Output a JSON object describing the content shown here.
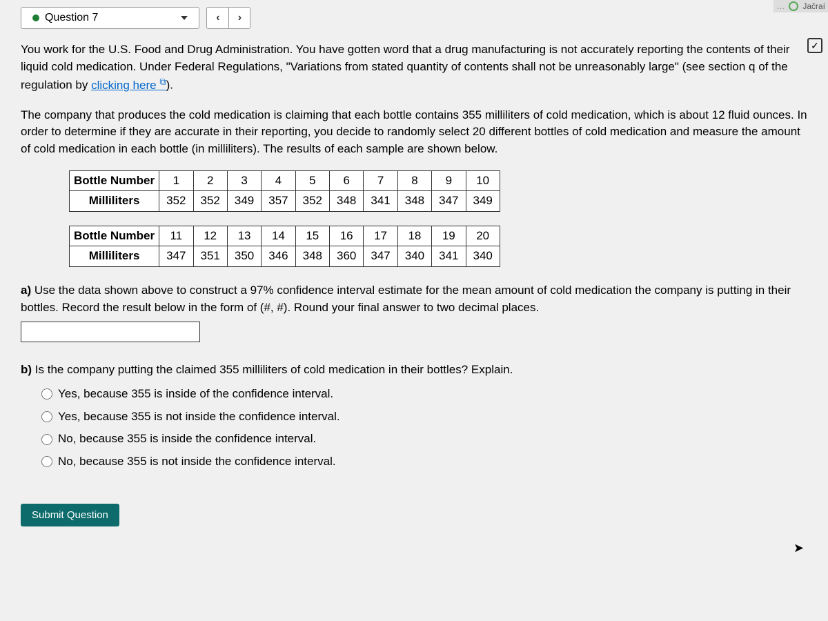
{
  "header": {
    "question_label": "Question 7",
    "prev_symbol": "‹",
    "next_symbol": "›"
  },
  "intro": {
    "p1a": "You work for the U.S. Food and Drug Administration. You have gotten word that a drug manufacturing is not accurately reporting the contents of their liquid cold medication. Under Federal Regulations, \"Variations from stated quantity of contents shall not be unreasonably large\" (see section q of the regulation by ",
    "link_text": "clicking here",
    "p1b": ").",
    "p2": "The company that produces the cold medication is claiming that each bottle contains 355 milliliters of cold medication, which is about 12 fluid ounces. In order to determine if they are accurate in their reporting, you decide to randomly select 20 different bottles of cold medication and measure the amount of cold medication in each bottle (in milliliters). The results of each sample are shown below."
  },
  "table1": {
    "row_label_1": "Bottle Number",
    "row_label_2": "Milliliters",
    "bottle_numbers": [
      "1",
      "2",
      "3",
      "4",
      "5",
      "6",
      "7",
      "8",
      "9",
      "10"
    ],
    "milliliters": [
      "352",
      "352",
      "349",
      "357",
      "352",
      "348",
      "341",
      "348",
      "347",
      "349"
    ]
  },
  "table2": {
    "row_label_1": "Bottle Number",
    "row_label_2": "Milliliters",
    "bottle_numbers": [
      "11",
      "12",
      "13",
      "14",
      "15",
      "16",
      "17",
      "18",
      "19",
      "20"
    ],
    "milliliters": [
      "347",
      "351",
      "350",
      "346",
      "348",
      "360",
      "347",
      "340",
      "341",
      "340"
    ]
  },
  "part_a": {
    "label": "a) ",
    "text": "Use the data shown above to construct a 97% confidence interval estimate for the mean amount of cold medication the company is putting in their bottles. Record the result below in the form of (#, #). Round your final answer to two decimal places."
  },
  "part_b": {
    "label": "b) ",
    "text": "Is the company putting the claimed 355 milliliters of cold medication in their bottles? Explain.",
    "options": [
      "Yes, because 355 is inside of the confidence interval.",
      "Yes, because 355 is not inside the confidence interval.",
      "No, because 355 is inside the confidence interval.",
      "No, because 355 is not inside the confidence interval."
    ]
  },
  "submit_label": "Submit Question",
  "colors": {
    "background": "#f0f0f0",
    "border": "#999",
    "text": "#000",
    "link": "#0066cc",
    "submit_bg": "#0d6b6b",
    "dot": "#1e7e34"
  }
}
